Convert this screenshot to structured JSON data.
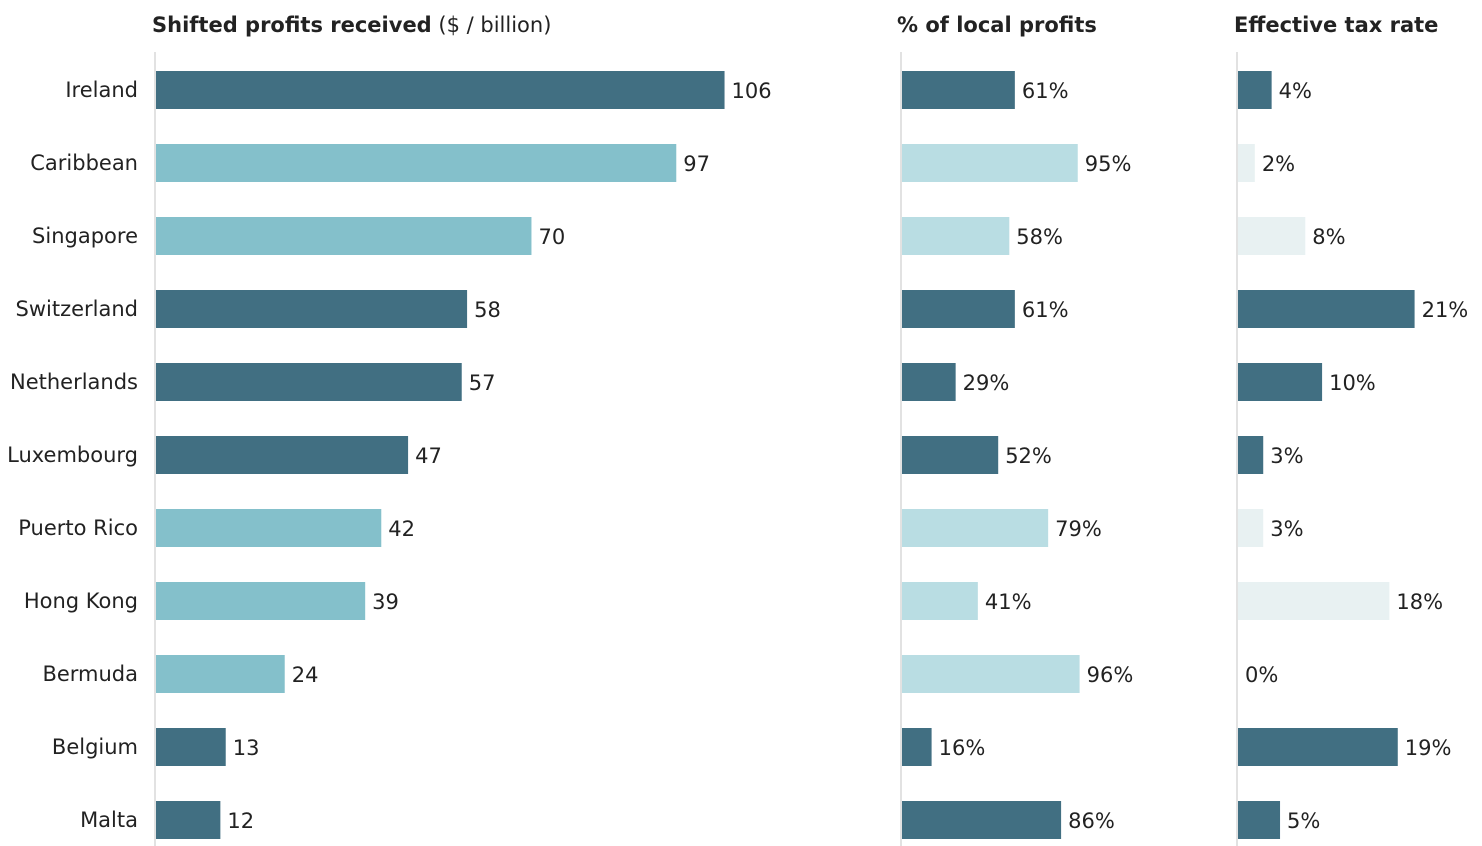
{
  "chart_data": {
    "type": "bar",
    "categories": [
      "Ireland",
      "Caribbean",
      "Singapore",
      "Switzerland",
      "Netherlands",
      "Luxembourg",
      "Puerto Rico",
      "Hong Kong",
      "Bermuda",
      "Belgium",
      "Malta"
    ],
    "colors": {
      "dark": "#416f82",
      "light": "#84c0cb",
      "lighter": "#b9dde3",
      "lightest": "#e8f1f2",
      "axis": "#d9d9d9"
    },
    "panels": [
      {
        "title_bold": "Shifted profits received",
        "title_normal": " ($  / billion)",
        "values": [
          106,
          97,
          70,
          58,
          57,
          47,
          42,
          39,
          24,
          13,
          12
        ],
        "labels": [
          "106",
          "97",
          "70",
          "58",
          "57",
          "47",
          "42",
          "39",
          "24",
          "13",
          "12"
        ],
        "shades": [
          "dark",
          "light",
          "light",
          "dark",
          "dark",
          "dark",
          "light",
          "light",
          "light",
          "dark",
          "dark"
        ],
        "xlim": [
          0,
          110
        ]
      },
      {
        "title_bold": "% of local profits",
        "title_normal": "",
        "values": [
          61,
          95,
          58,
          61,
          29,
          52,
          79,
          41,
          96,
          16,
          86
        ],
        "labels": [
          "61%",
          "95%",
          "58%",
          "61%",
          "29%",
          "52%",
          "79%",
          "41%",
          "96%",
          "16%",
          "86%"
        ],
        "shades": [
          "dark",
          "lighter",
          "lighter",
          "dark",
          "dark",
          "dark",
          "lighter",
          "lighter",
          "lighter",
          "dark",
          "dark"
        ],
        "xlim": [
          0,
          100
        ]
      },
      {
        "title_bold": "Effective tax rate",
        "title_normal": "",
        "values": [
          4,
          2,
          8,
          21,
          10,
          3,
          3,
          18,
          0,
          19,
          5
        ],
        "labels": [
          "4%",
          "2%",
          "8%",
          "21%",
          "10%",
          "3%",
          "3%",
          "18%",
          "0%",
          "19%",
          "5%"
        ],
        "shades": [
          "dark",
          "lightest",
          "lightest",
          "dark",
          "dark",
          "dark",
          "lightest",
          "lightest",
          "lightest",
          "dark",
          "dark"
        ],
        "xlim": [
          0,
          22
        ]
      }
    ]
  }
}
